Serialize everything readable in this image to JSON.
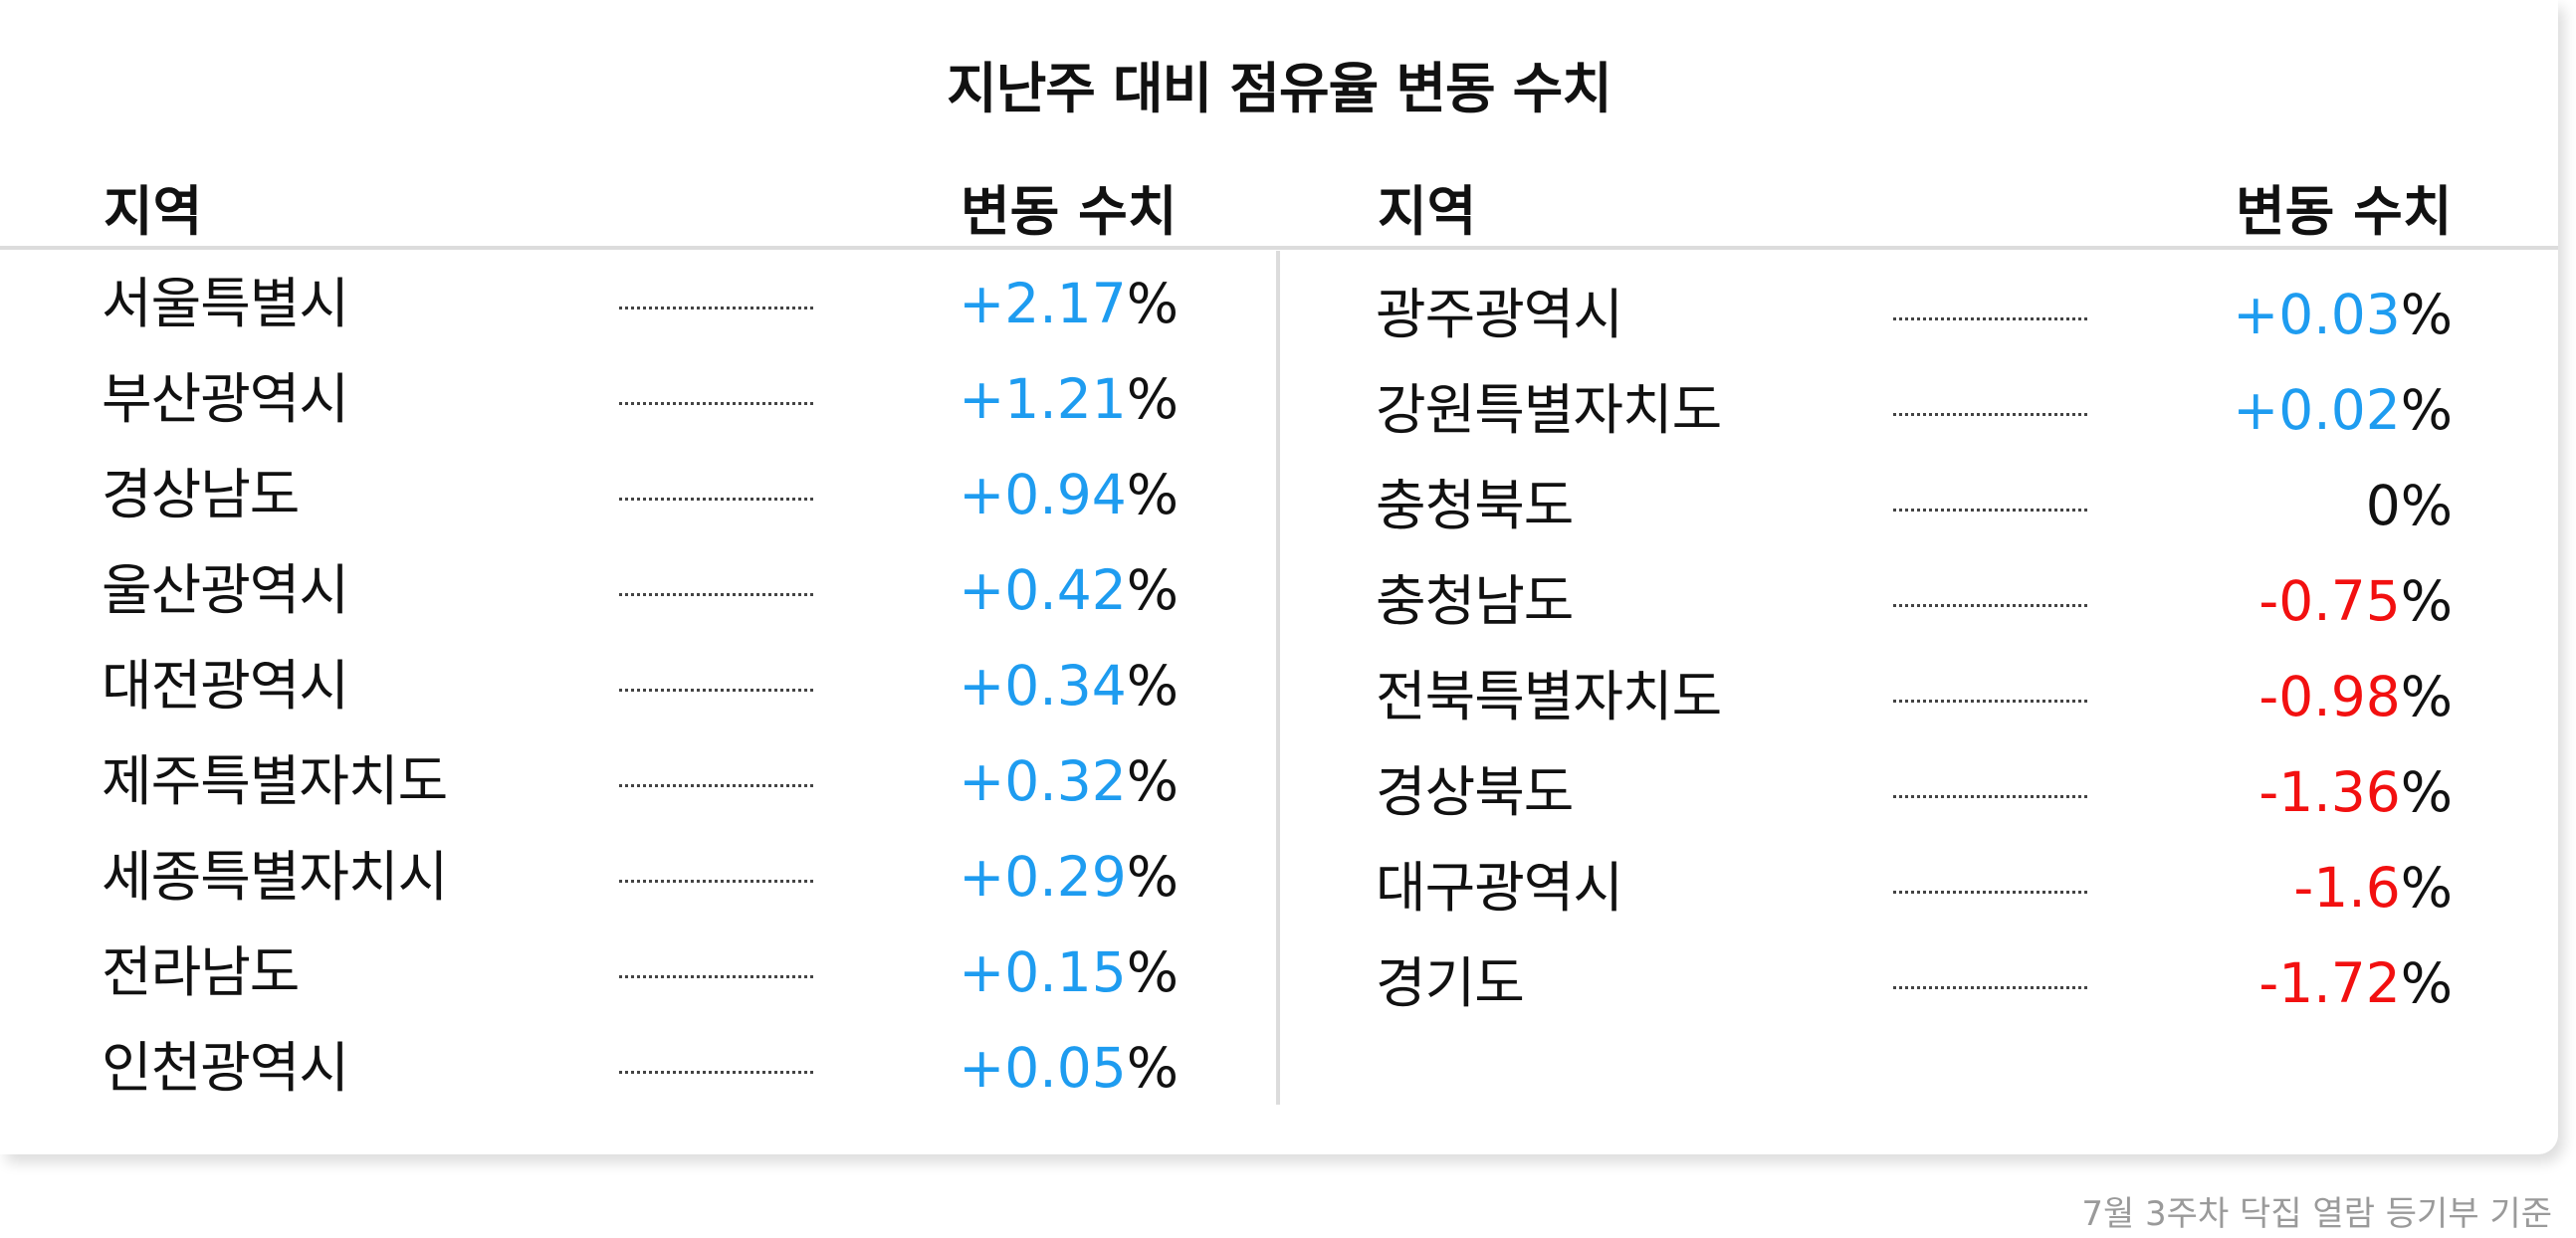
{
  "title": "지난주 대비 점유율 변동 수치",
  "header": {
    "region": "지역",
    "change": "변동 수치"
  },
  "footer": "7월 3주차 닥집 열람 등기부 기준",
  "colors": {
    "positive": "#1e9cf0",
    "negative": "#f21010",
    "zero": "#111111",
    "text": "#111111"
  },
  "chart_data": {
    "type": "table",
    "title": "지난주 대비 점유율 변동 수치",
    "columns": [
      "지역",
      "변동 수치"
    ],
    "unit": "%",
    "left": [
      {
        "region": "서울특별시",
        "value": "+2.17",
        "sign": "positive"
      },
      {
        "region": "부산광역시",
        "value": "+1.21",
        "sign": "positive"
      },
      {
        "region": "경상남도",
        "value": "+0.94",
        "sign": "positive"
      },
      {
        "region": "울산광역시",
        "value": "+0.42",
        "sign": "positive"
      },
      {
        "region": "대전광역시",
        "value": "+0.34",
        "sign": "positive"
      },
      {
        "region": "제주특별자치도",
        "value": "+0.32",
        "sign": "positive"
      },
      {
        "region": "세종특별자치시",
        "value": "+0.29",
        "sign": "positive"
      },
      {
        "region": "전라남도",
        "value": "+0.15",
        "sign": "positive"
      },
      {
        "region": "인천광역시",
        "value": "+0.05",
        "sign": "positive"
      }
    ],
    "right": [
      {
        "region": "광주광역시",
        "value": "+0.03",
        "sign": "positive"
      },
      {
        "region": "강원특별자치도",
        "value": "+0.02",
        "sign": "positive"
      },
      {
        "region": "충청북도",
        "value": "0",
        "sign": "zero"
      },
      {
        "region": "충청남도",
        "value": "-0.75",
        "sign": "negative"
      },
      {
        "region": "전북특별자치도",
        "value": "-0.98",
        "sign": "negative"
      },
      {
        "region": "경상북도",
        "value": "-1.36",
        "sign": "negative"
      },
      {
        "region": "대구광역시",
        "value": "-1.6",
        "sign": "negative"
      },
      {
        "region": "경기도",
        "value": "-1.72",
        "sign": "negative"
      }
    ]
  }
}
